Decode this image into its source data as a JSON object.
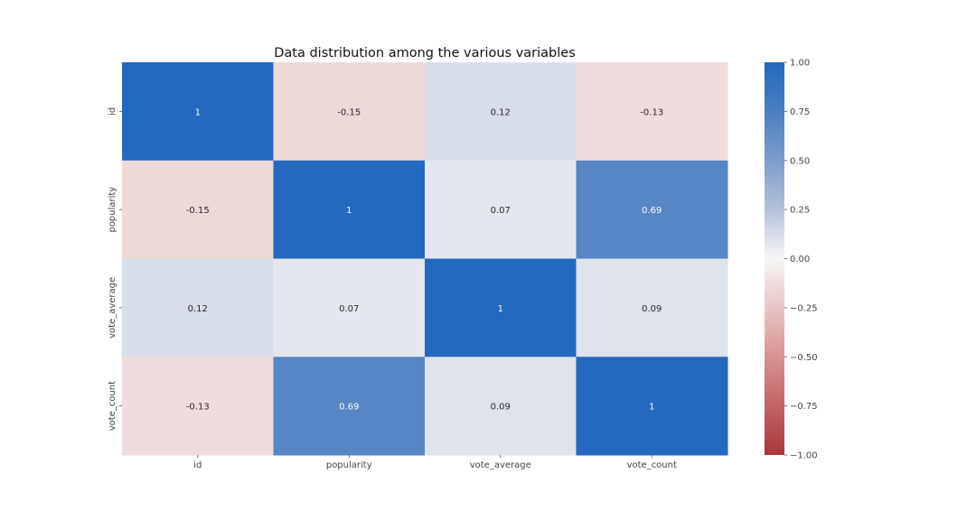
{
  "chart_data": {
    "type": "heatmap",
    "title": "Data distribution among the various variables",
    "x_labels": [
      "id",
      "popularity",
      "vote_average",
      "vote_count"
    ],
    "y_labels": [
      "id",
      "popularity",
      "vote_average",
      "vote_count"
    ],
    "values": [
      [
        1,
        -0.15,
        0.12,
        -0.13
      ],
      [
        -0.15,
        1,
        0.07,
        0.69
      ],
      [
        0.12,
        0.07,
        1,
        0.09
      ],
      [
        -0.13,
        0.69,
        0.09,
        1
      ]
    ],
    "annotations": [
      [
        "1",
        "-0.15",
        "0.12",
        "-0.13"
      ],
      [
        "-0.15",
        "1",
        "0.07",
        "0.69"
      ],
      [
        "0.12",
        "0.07",
        "1",
        "0.09"
      ],
      [
        "-0.13",
        "0.69",
        "0.09",
        "1"
      ]
    ],
    "colorbar": {
      "vmin": -1,
      "vmax": 1,
      "ticks": [
        "1.00",
        "0.75",
        "0.50",
        "0.25",
        "0.00",
        "−0.25",
        "−0.50",
        "−0.75",
        "−1.00"
      ],
      "tick_values": [
        1,
        0.75,
        0.5,
        0.25,
        0,
        -0.25,
        -0.5,
        -0.75,
        -1
      ],
      "colormap": "vlag_r",
      "color_negative": "#a9373b",
      "color_center": "#f7f6f6",
      "color_positive": "#2369bd"
    },
    "grid": false
  }
}
